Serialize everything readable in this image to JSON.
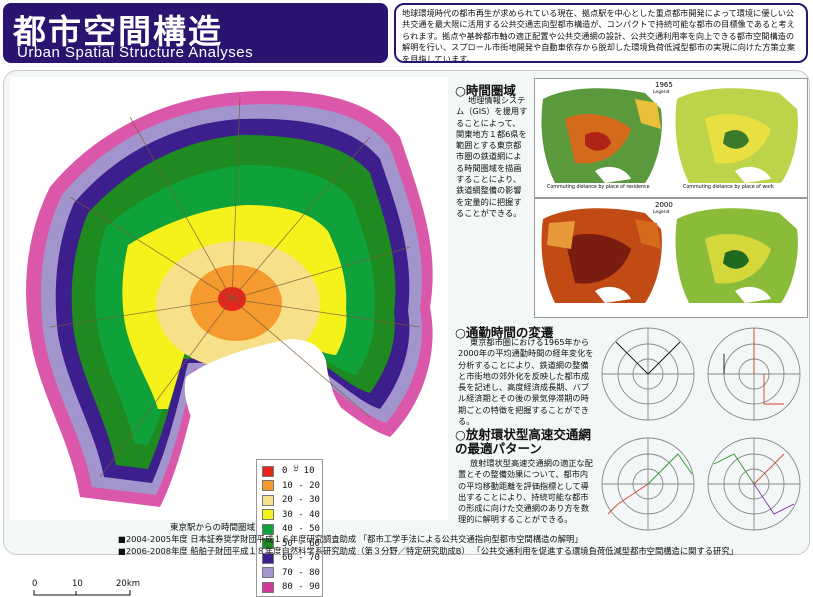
{
  "header": {
    "title_jp": "都市空間構造",
    "title_en": "Urban Spatial Structure Analyses",
    "description": "地球環境時代の都市再生が求められている現在、拠点駅を中心とした重点都市開発によって環境に優しい公共交通を最大限に活用する公共交通志向型都市構造が、コンパクトで持続可能な都市の目標像であると考えられます。拠点や基幹都市軸の適正配置や公共交通網の設計、公共交通利用率を向上できる都市空間構造の解明を行い、スプロール市街地開発や自動車依存から脱却した環境負荷低減型都市の実現に向けた方策立案を目指しています。"
  },
  "map": {
    "caption": "東京駅からの時間圏域",
    "unit": "分",
    "scale_labels": [
      "0",
      "10",
      "20km"
    ],
    "legend": [
      {
        "label": "0 - 10",
        "color": "#e8251c"
      },
      {
        "label": "10 - 20",
        "color": "#f59a2e"
      },
      {
        "label": "20 - 30",
        "color": "#f7e08a"
      },
      {
        "label": "30 - 40",
        "color": "#f4f21a"
      },
      {
        "label": "40 - 50",
        "color": "#0fa23a"
      },
      {
        "label": "50 - 60",
        "color": "#1f8a1f"
      },
      {
        "label": "60 - 70",
        "color": "#3c1f8c"
      },
      {
        "label": "70 - 80",
        "color": "#a294cc"
      },
      {
        "label": "80 - 90",
        "color": "#d43a9a"
      }
    ]
  },
  "sections": {
    "time_zone": {
      "title": "○時間圏域",
      "text": "地理情報システム（GIS）を援用することによって、関東地方１都6県を範囲とする東京都市圏の鉄道網による時間圏域を描画することにより、鉄道網整備の影響を定量的に把握することができる。"
    },
    "commute": {
      "title": "○通勤時間の変遷",
      "text": "東京都市圏における1965年から2000年の平均通勤時間の経年変化を分析することにより、鉄道網の整備と市街地の郊外化を反映した都市成長を記述し、高度経済成長期、バブル経済期とその後の景気停滞期の時期ごとの特徴を把握することができる。"
    },
    "network": {
      "title": "○放射環状型高速交通網の最適パターン",
      "text": "放射環状型高速交通網の適正な配置とその整備効果について、都市内の平均移動距離を評価指標として導出することにより、持続可能な都市の形成に向けた交通網のあり方を数理的に解明することができる。"
    }
  },
  "panels": {
    "year_1965": "1965",
    "year_2000": "2000",
    "legend_title": "Legend",
    "cap_residence": "Commuting distance by place of residence",
    "cap_work": "Commuting distance by place of work"
  },
  "funding": [
    "■2004-2005年度 日本証券奨学財団平成１６年度研究調査助成 「都市工学手法による公共交通指向型都市空間構造の解明」",
    "■2006-2008年度 船舶子財団平成１８年度自然科学系研究助成（第３分野／特定研究助成B） 「公共交通利用を促進する環境負荷低減型都市空間構造に関する研究」"
  ]
}
